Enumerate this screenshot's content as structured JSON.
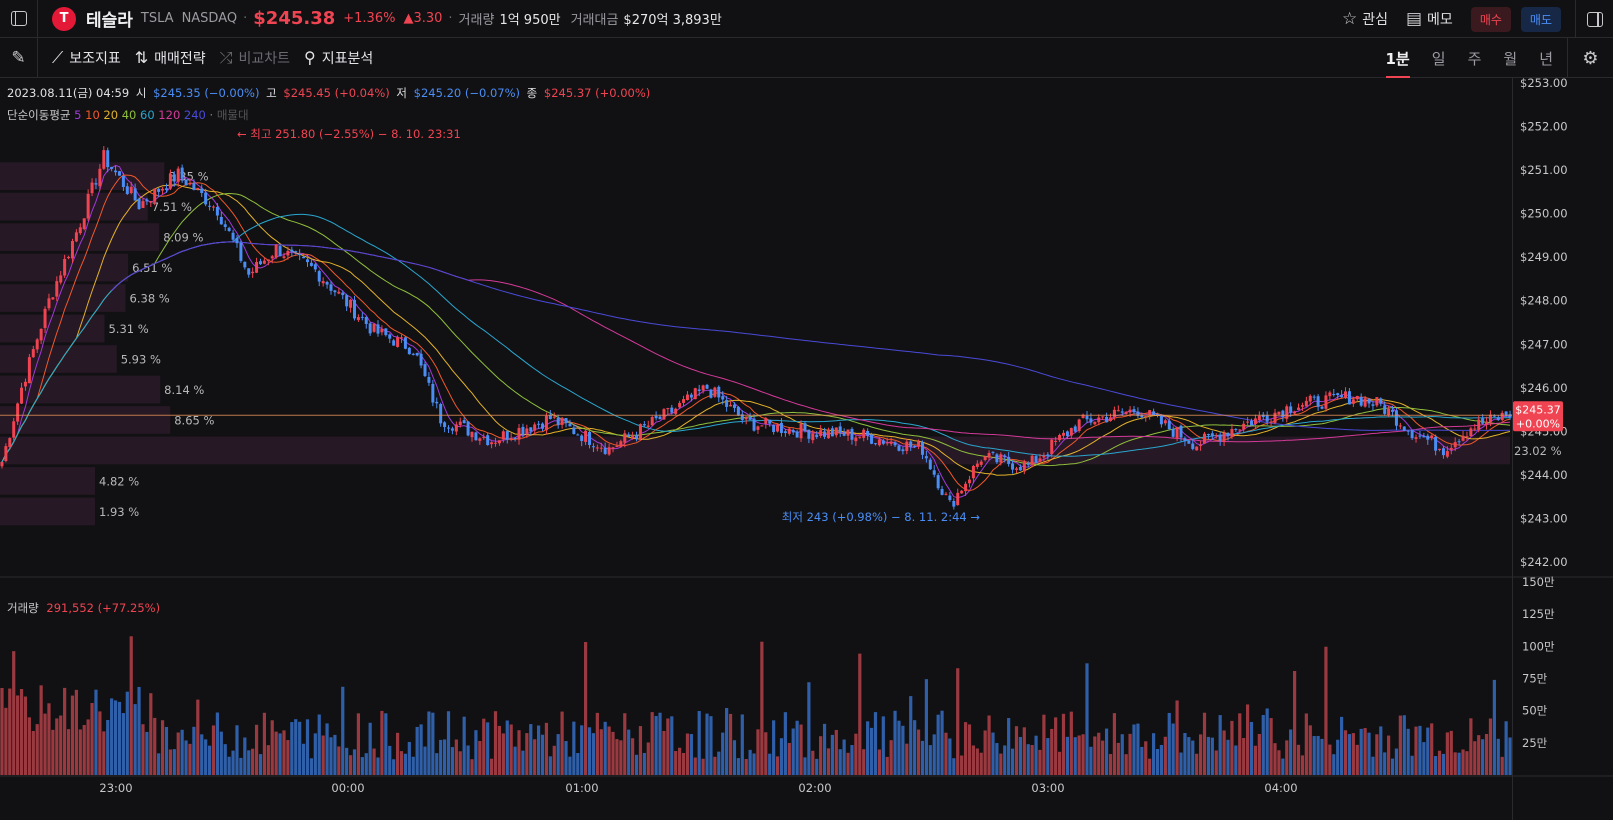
{
  "header": {
    "logo_letter": "T",
    "name": "테슬라",
    "ticker": "TSLA",
    "exchange": "NASDAQ",
    "price": "$245.38",
    "change_pct": "+1.36%",
    "change_abs": "▲3.30",
    "volume_label": "거래량",
    "volume_value": "1억 950만",
    "amount_label": "거래대금",
    "amount_value": "$270억 3,893만",
    "watch_label": "관심",
    "memo_label": "메모",
    "buy_label": "매수",
    "sell_label": "매도"
  },
  "toolbar": {
    "indicators": "보조지표",
    "strategy": "매매전략",
    "compare": "비교차트",
    "analysis": "지표분석",
    "timeframes": [
      "1분",
      "일",
      "주",
      "월",
      "년"
    ],
    "active_timeframe": "1분"
  },
  "info": {
    "datetime": "2023.08.11(금) 04:59",
    "open_label": "시",
    "open_value": "$245.35 (−0.00%)",
    "high_label": "고",
    "high_value": "$245.45 (+0.04%)",
    "low_label": "저",
    "low_value": "$245.20 (−0.07%)",
    "close_label": "종",
    "close_value": "$245.37 (+0.00%)"
  },
  "ma": {
    "label": "단순이동평균",
    "periods": [
      "5",
      "10",
      "20",
      "40",
      "60",
      "120",
      "240",
      "매물대"
    ],
    "colors": [
      "#a23ad9",
      "#f0582a",
      "#e3b12a",
      "#8fbf3c",
      "#2aa6cf",
      "#d43a9a",
      "#4a4ad9",
      "#555558"
    ]
  },
  "volume": {
    "label": "거래량",
    "value": "291,552 (+77.25%)"
  },
  "annotations": {
    "high": "← 최고 251.80 (−2.55%) − 8. 10. 23:31",
    "low": "최저 243 (+0.98%) − 8. 11. 2:44 →",
    "price_tag": "$245.37",
    "price_tag_pct": "+0.00%"
  },
  "volume_profile": [
    {
      "label": "8.35 %",
      "price": 250.85
    },
    {
      "label": "7.51 %",
      "price": 250.15
    },
    {
      "label": "8.09 %",
      "price": 249.45
    },
    {
      "label": "6.51 %",
      "price": 248.75
    },
    {
      "label": "6.38 %",
      "price": 248.05
    },
    {
      "label": "5.31 %",
      "price": 247.35
    },
    {
      "label": "5.93 %",
      "price": 246.65
    },
    {
      "label": "8.14 %",
      "price": 245.95
    },
    {
      "label": "8.65 %",
      "price": 245.25
    },
    {
      "label": "23.02 %",
      "price": 244.55
    },
    {
      "label": "4.82 %",
      "price": 243.85
    },
    {
      "label": "1.93 %",
      "price": 243.15
    }
  ],
  "colors": {
    "up": "#f04452",
    "down": "#4a8df5",
    "up_volume": "#9a3a40",
    "down_volume": "#2f5fa8",
    "background": "#111113"
  },
  "chart_data": {
    "type": "candlestick",
    "title": "",
    "y_range": [
      242,
      253
    ],
    "y_ticks": [
      "$253.00",
      "$252.00",
      "$251.00",
      "$250.00",
      "$249.00",
      "$248.00",
      "$247.00",
      "$246.00",
      "$245.00",
      "$244.00",
      "$243.00",
      "$242.00"
    ],
    "x_ticks": [
      "23:00",
      "00:00",
      "01:00",
      "02:00",
      "03:00",
      "04:00"
    ],
    "price_keypoints": [
      [
        0,
        244.3
      ],
      [
        5,
        246.0
      ],
      [
        12,
        248.0
      ],
      [
        20,
        249.8
      ],
      [
        26,
        251.3
      ],
      [
        35,
        250.2
      ],
      [
        45,
        250.9
      ],
      [
        55,
        250.1
      ],
      [
        63,
        248.6
      ],
      [
        70,
        249.2
      ],
      [
        80,
        248.7
      ],
      [
        95,
        247.3
      ],
      [
        105,
        246.9
      ],
      [
        112,
        245.3
      ],
      [
        125,
        244.8
      ],
      [
        140,
        245.3
      ],
      [
        155,
        244.6
      ],
      [
        170,
        245.4
      ],
      [
        180,
        246.0
      ],
      [
        190,
        245.2
      ],
      [
        205,
        245.0
      ],
      [
        220,
        244.9
      ],
      [
        235,
        244.6
      ],
      [
        242,
        243.3
      ],
      [
        250,
        244.4
      ],
      [
        262,
        244.2
      ],
      [
        275,
        245.2
      ],
      [
        290,
        245.5
      ],
      [
        305,
        244.7
      ],
      [
        315,
        245.1
      ],
      [
        330,
        245.6
      ],
      [
        345,
        245.8
      ],
      [
        352,
        245.6
      ],
      [
        360,
        245.0
      ],
      [
        368,
        244.6
      ],
      [
        375,
        245.1
      ],
      [
        385,
        245.4
      ]
    ],
    "volume_axis": [
      "150만",
      "125만",
      "100만",
      "75만",
      "50만",
      "25만"
    ],
    "volume_max": 1500000,
    "last_volume": 291552
  }
}
